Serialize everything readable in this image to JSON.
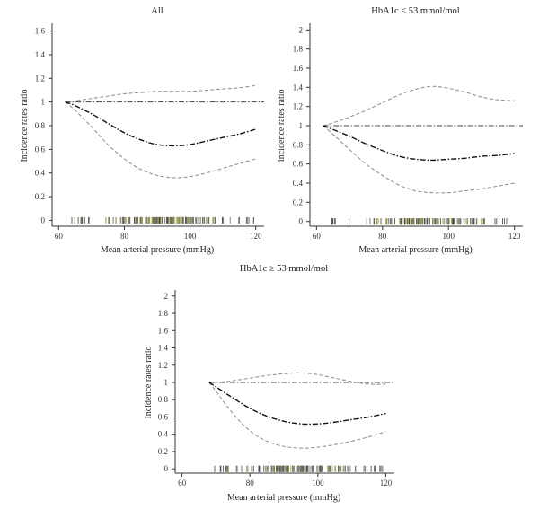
{
  "chart_data": [
    {
      "type": "line",
      "title": "All",
      "xlabel": "Mean arterial pressure (mmHg)",
      "ylabel": "Incidence rates ratio",
      "xlim": [
        58,
        122
      ],
      "ylim": [
        -0.05,
        1.65
      ],
      "xticks": [
        60,
        80,
        100,
        120
      ],
      "xtick_labels": [
        "60",
        "80",
        "100",
        "120"
      ],
      "yticks": [
        0,
        0.2,
        0.4,
        0.6,
        0.8,
        1,
        1.2,
        1.4,
        1.6
      ],
      "ytick_labels": [
        "0",
        "0.2",
        "0.4",
        "0.6",
        "0.8",
        "1",
        "1.2",
        "1.4",
        "1.6"
      ],
      "reference_line": 1,
      "x": [
        62,
        65,
        70,
        75,
        80,
        85,
        90,
        95,
        100,
        105,
        110,
        115,
        120
      ],
      "estimate": [
        1.0,
        0.97,
        0.9,
        0.82,
        0.74,
        0.68,
        0.64,
        0.63,
        0.64,
        0.67,
        0.7,
        0.73,
        0.77
      ],
      "upper_ci": [
        1.0,
        1.01,
        1.03,
        1.05,
        1.07,
        1.08,
        1.09,
        1.09,
        1.09,
        1.1,
        1.11,
        1.12,
        1.14
      ],
      "lower_ci": [
        1.0,
        0.93,
        0.79,
        0.64,
        0.52,
        0.43,
        0.38,
        0.36,
        0.37,
        0.4,
        0.44,
        0.48,
        0.52
      ],
      "rug_range": [
        64,
        120
      ],
      "rug_count": 150,
      "grid": false,
      "legend": "none"
    },
    {
      "type": "line",
      "title": "HbA1c < 53 mmol/mol",
      "xlabel": "Mean arterial pressure (mmHg)",
      "ylabel": "Incidence rates ratio",
      "xlim": [
        58,
        122
      ],
      "ylim": [
        -0.05,
        2.05
      ],
      "xticks": [
        60,
        80,
        100,
        120
      ],
      "xtick_labels": [
        "60",
        "80",
        "100",
        "120"
      ],
      "yticks": [
        0,
        0.2,
        0.4,
        0.6,
        0.8,
        1,
        1.2,
        1.4,
        1.6,
        1.8,
        2
      ],
      "ytick_labels": [
        "0",
        "0.2",
        "0.4",
        "0.6",
        "0.8",
        "1",
        "1.2",
        "1.4",
        "1.6",
        "1.8",
        "2"
      ],
      "reference_line": 1,
      "x": [
        62,
        65,
        70,
        75,
        80,
        85,
        90,
        95,
        100,
        105,
        110,
        115,
        120
      ],
      "estimate": [
        1.0,
        0.96,
        0.89,
        0.81,
        0.74,
        0.68,
        0.65,
        0.64,
        0.65,
        0.66,
        0.68,
        0.69,
        0.71
      ],
      "upper_ci": [
        1.0,
        1.03,
        1.09,
        1.16,
        1.24,
        1.32,
        1.38,
        1.41,
        1.39,
        1.35,
        1.3,
        1.27,
        1.26
      ],
      "lower_ci": [
        1.0,
        0.91,
        0.75,
        0.6,
        0.48,
        0.38,
        0.32,
        0.3,
        0.3,
        0.32,
        0.34,
        0.37,
        0.4
      ],
      "rug_range": [
        64,
        120
      ],
      "rug_count": 120,
      "grid": false,
      "legend": "none"
    },
    {
      "type": "line",
      "title": "HbA1c ≥ 53 mmol/mol",
      "xlabel": "Mean arterial pressure (mmHg)",
      "ylabel": "Incidence rates ratio",
      "xlim": [
        58,
        122
      ],
      "ylim": [
        -0.05,
        2.05
      ],
      "xticks": [
        60,
        80,
        100,
        120
      ],
      "xtick_labels": [
        "60",
        "80",
        "100",
        "120"
      ],
      "yticks": [
        0,
        0.2,
        0.4,
        0.6,
        0.8,
        1,
        1.2,
        1.4,
        1.6,
        1.8,
        2
      ],
      "ytick_labels": [
        "0",
        "0.2",
        "0.4",
        "0.6",
        "0.8",
        "1",
        "1.2",
        "1.4",
        "1.6",
        "1.8",
        "2"
      ],
      "reference_line": 1,
      "x": [
        68,
        70,
        75,
        80,
        85,
        90,
        95,
        100,
        105,
        110,
        115,
        120
      ],
      "estimate": [
        1.0,
        0.95,
        0.82,
        0.7,
        0.61,
        0.55,
        0.52,
        0.52,
        0.54,
        0.57,
        0.6,
        0.64
      ],
      "upper_ci": [
        1.0,
        1.0,
        1.02,
        1.05,
        1.08,
        1.1,
        1.11,
        1.09,
        1.05,
        1.01,
        0.98,
        0.98
      ],
      "lower_ci": [
        1.0,
        0.9,
        0.64,
        0.44,
        0.32,
        0.26,
        0.24,
        0.25,
        0.28,
        0.32,
        0.37,
        0.43
      ],
      "rug_range": [
        69,
        120
      ],
      "rug_count": 130,
      "grid": false,
      "legend": "none"
    }
  ]
}
